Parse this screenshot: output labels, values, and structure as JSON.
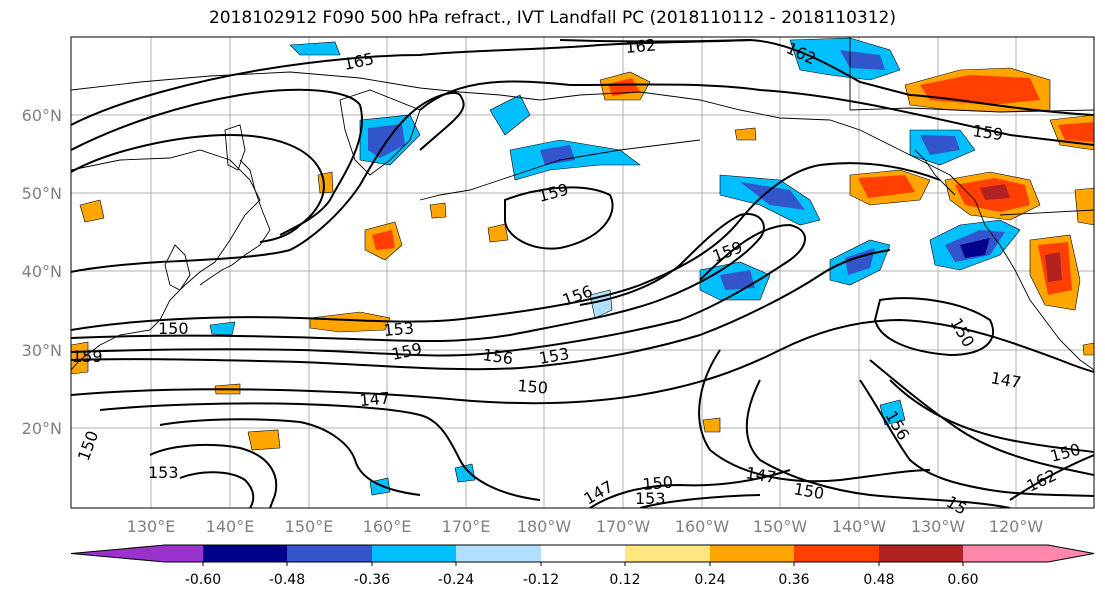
{
  "title": "2018102912 F090 500 hPa refract., IVT Landfall PC (2018110112 - 2018110312)",
  "lat_labels": [
    "60°N",
    "50°N",
    "40°N",
    "30°N",
    "20°N"
  ],
  "lon_labels": [
    "130°E",
    "140°E",
    "150°E",
    "160°E",
    "170°E",
    "180°W",
    "170°W",
    "160°W",
    "150°W",
    "140°W",
    "130°W",
    "120°W"
  ],
  "colorbar": {
    "colors": [
      "#9933cc",
      "#00008b",
      "#3355cc",
      "#00bfff",
      "#b0e0ff",
      "#ffffff",
      "#ffe680",
      "#ffa500",
      "#ff4000",
      "#b22222",
      "#ff88aa"
    ],
    "tick_labels": [
      "-0.60",
      "-0.48",
      "-0.36",
      "-0.24",
      "-0.12",
      "0.12",
      "0.24",
      "0.36",
      "0.48",
      "0.60"
    ]
  },
  "contour_labels": [
    "165",
    "162",
    "162",
    "159",
    "159",
    "159",
    "159",
    "156",
    "156",
    "153",
    "153",
    "153",
    "150",
    "150",
    "150",
    "150",
    "150",
    "147",
    "147",
    "147",
    "147",
    "156",
    "153",
    "159",
    "162",
    "150",
    "150",
    "15"
  ]
}
